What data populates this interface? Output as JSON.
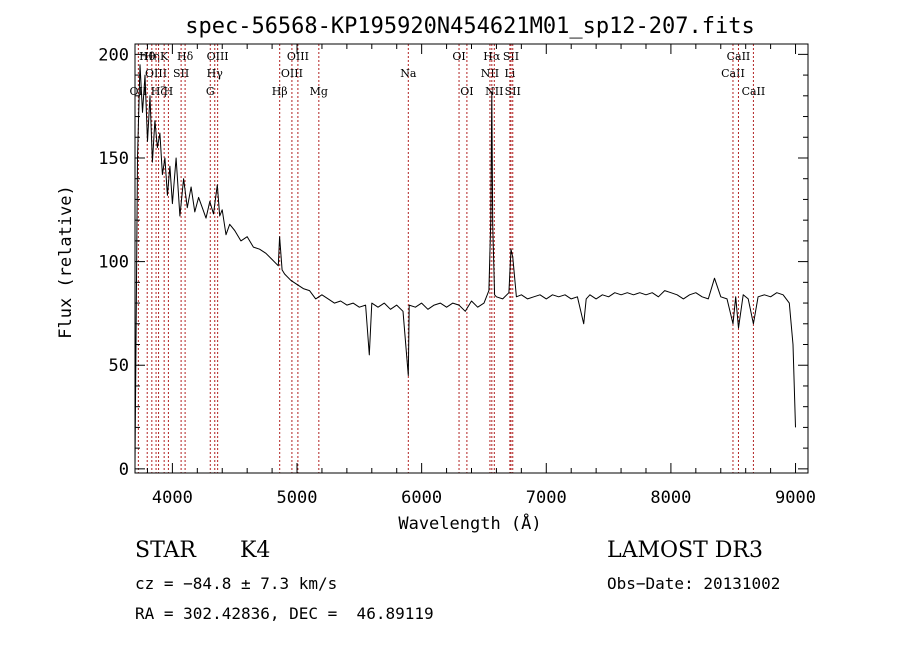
{
  "chart_data": {
    "type": "line",
    "title": "spec-56568-KP195920N454621M01_sp12-207.fits",
    "xlabel": "Wavelength (Å)",
    "ylabel": "Flux (relative)",
    "xlim": [
      3700,
      9100
    ],
    "ylim": [
      -2,
      205
    ],
    "xticks": [
      4000,
      5000,
      6000,
      7000,
      8000,
      9000
    ],
    "yticks": [
      0,
      50,
      100,
      150,
      200
    ],
    "grid": false,
    "series": [
      {
        "x": [
          3700,
          3720,
          3740,
          3760,
          3780,
          3800,
          3820,
          3840,
          3860,
          3880,
          3900,
          3920,
          3940,
          3960,
          3980,
          4000,
          4030,
          4060,
          4090,
          4120,
          4150,
          4180,
          4210,
          4240,
          4270,
          4300,
          4330,
          4360,
          4380,
          4400,
          4430,
          4460,
          4500,
          4550,
          4600,
          4650,
          4700,
          4750,
          4800,
          4850,
          4860,
          4880,
          4900,
          4950,
          5000,
          5050,
          5100,
          5150,
          5200,
          5250,
          5300,
          5350,
          5400,
          5450,
          5500,
          5550,
          5580,
          5600,
          5650,
          5700,
          5750,
          5800,
          5850,
          5893,
          5900,
          5950,
          6000,
          6050,
          6100,
          6150,
          6200,
          6250,
          6300,
          6350,
          6400,
          6450,
          6500,
          6540,
          6555,
          6563,
          6570,
          6585,
          6600,
          6650,
          6700,
          6717,
          6731,
          6760,
          6800,
          6850,
          6900,
          6950,
          7000,
          7050,
          7100,
          7150,
          7200,
          7250,
          7300,
          7320,
          7350,
          7400,
          7450,
          7500,
          7550,
          7600,
          7650,
          7700,
          7750,
          7800,
          7850,
          7900,
          7950,
          8000,
          8050,
          8100,
          8150,
          8200,
          8250,
          8300,
          8350,
          8400,
          8450,
          8498,
          8520,
          8542,
          8580,
          8620,
          8662,
          8700,
          8750,
          8800,
          8850,
          8900,
          8950,
          8980,
          9000
        ],
        "y": [
          2,
          150,
          195,
          172,
          190,
          158,
          180,
          148,
          168,
          155,
          162,
          142,
          150,
          132,
          146,
          128,
          150,
          122,
          140,
          126,
          136,
          124,
          131,
          126,
          121,
          129,
          123,
          137,
          122,
          125,
          113,
          118,
          115,
          110,
          112,
          107,
          106,
          104,
          101,
          98,
          112,
          96,
          94,
          91,
          89,
          87,
          86,
          82,
          84,
          82,
          80,
          81,
          79,
          80,
          78,
          79,
          55,
          80,
          78,
          80,
          77,
          79,
          76,
          45,
          79,
          78,
          80,
          77,
          79,
          80,
          78,
          80,
          79,
          76,
          81,
          78,
          80,
          86,
          120,
          182,
          118,
          84,
          83,
          82,
          85,
          106,
          102,
          83,
          84,
          82,
          83,
          84,
          82,
          84,
          83,
          84,
          82,
          83,
          70,
          82,
          84,
          82,
          84,
          83,
          85,
          84,
          85,
          84,
          85,
          84,
          85,
          83,
          86,
          85,
          84,
          82,
          84,
          85,
          83,
          82,
          92,
          83,
          82,
          70,
          83,
          68,
          84,
          82,
          70,
          83,
          84,
          83,
          85,
          84,
          80,
          60,
          20
        ]
      }
    ],
    "line_markers": [
      {
        "x": 3727,
        "label": "OII",
        "row": 2
      },
      {
        "x": 3798,
        "label": "Hθ",
        "row": 0
      },
      {
        "x": 3835,
        "label": "Hη",
        "row": 0
      },
      {
        "x": 3869,
        "label": "OIII",
        "row": 1
      },
      {
        "x": 3889,
        "label": "Hζ",
        "row": 2
      },
      {
        "x": 3934,
        "label": "K",
        "row": 0
      },
      {
        "x": 3968,
        "label": "H",
        "row": 2
      },
      {
        "x": 4070,
        "label": "SII",
        "row": 1
      },
      {
        "x": 4102,
        "label": "Hδ",
        "row": 0
      },
      {
        "x": 4304,
        "label": "G",
        "row": 2
      },
      {
        "x": 4340,
        "label": "Hγ",
        "row": 1
      },
      {
        "x": 4363,
        "label": "OIII",
        "row": 0
      },
      {
        "x": 4861,
        "label": "Hβ",
        "row": 2
      },
      {
        "x": 4959,
        "label": "OIII",
        "row": 1
      },
      {
        "x": 5007,
        "label": "OIII",
        "row": 0
      },
      {
        "x": 5175,
        "label": "Mg",
        "row": 2
      },
      {
        "x": 5893,
        "label": "Na",
        "row": 1
      },
      {
        "x": 6300,
        "label": "OI",
        "row": 0
      },
      {
        "x": 6363,
        "label": "OI",
        "row": 2
      },
      {
        "x": 6548,
        "label": "NII",
        "row": 1
      },
      {
        "x": 6563,
        "label": "Hα",
        "row": 0
      },
      {
        "x": 6583,
        "label": "NII",
        "row": 2
      },
      {
        "x": 6708,
        "label": "Li",
        "row": 1
      },
      {
        "x": 6717,
        "label": "SII",
        "row": 0
      },
      {
        "x": 6731,
        "label": "SII",
        "row": 2
      },
      {
        "x": 8498,
        "label": "CaII",
        "row": 1
      },
      {
        "x": 8542,
        "label": "CaII",
        "row": 0
      },
      {
        "x": 8662,
        "label": "CaII",
        "row": 2
      }
    ]
  },
  "info": {
    "class": "STAR",
    "subclass": "K4",
    "cz": "cz = −84.8 ± 7.3 km/s",
    "coords": "RA = 302.42836, DEC =  46.89119",
    "survey": "LAMOST DR3",
    "obs_date": "Obs−Date: 20131002"
  }
}
